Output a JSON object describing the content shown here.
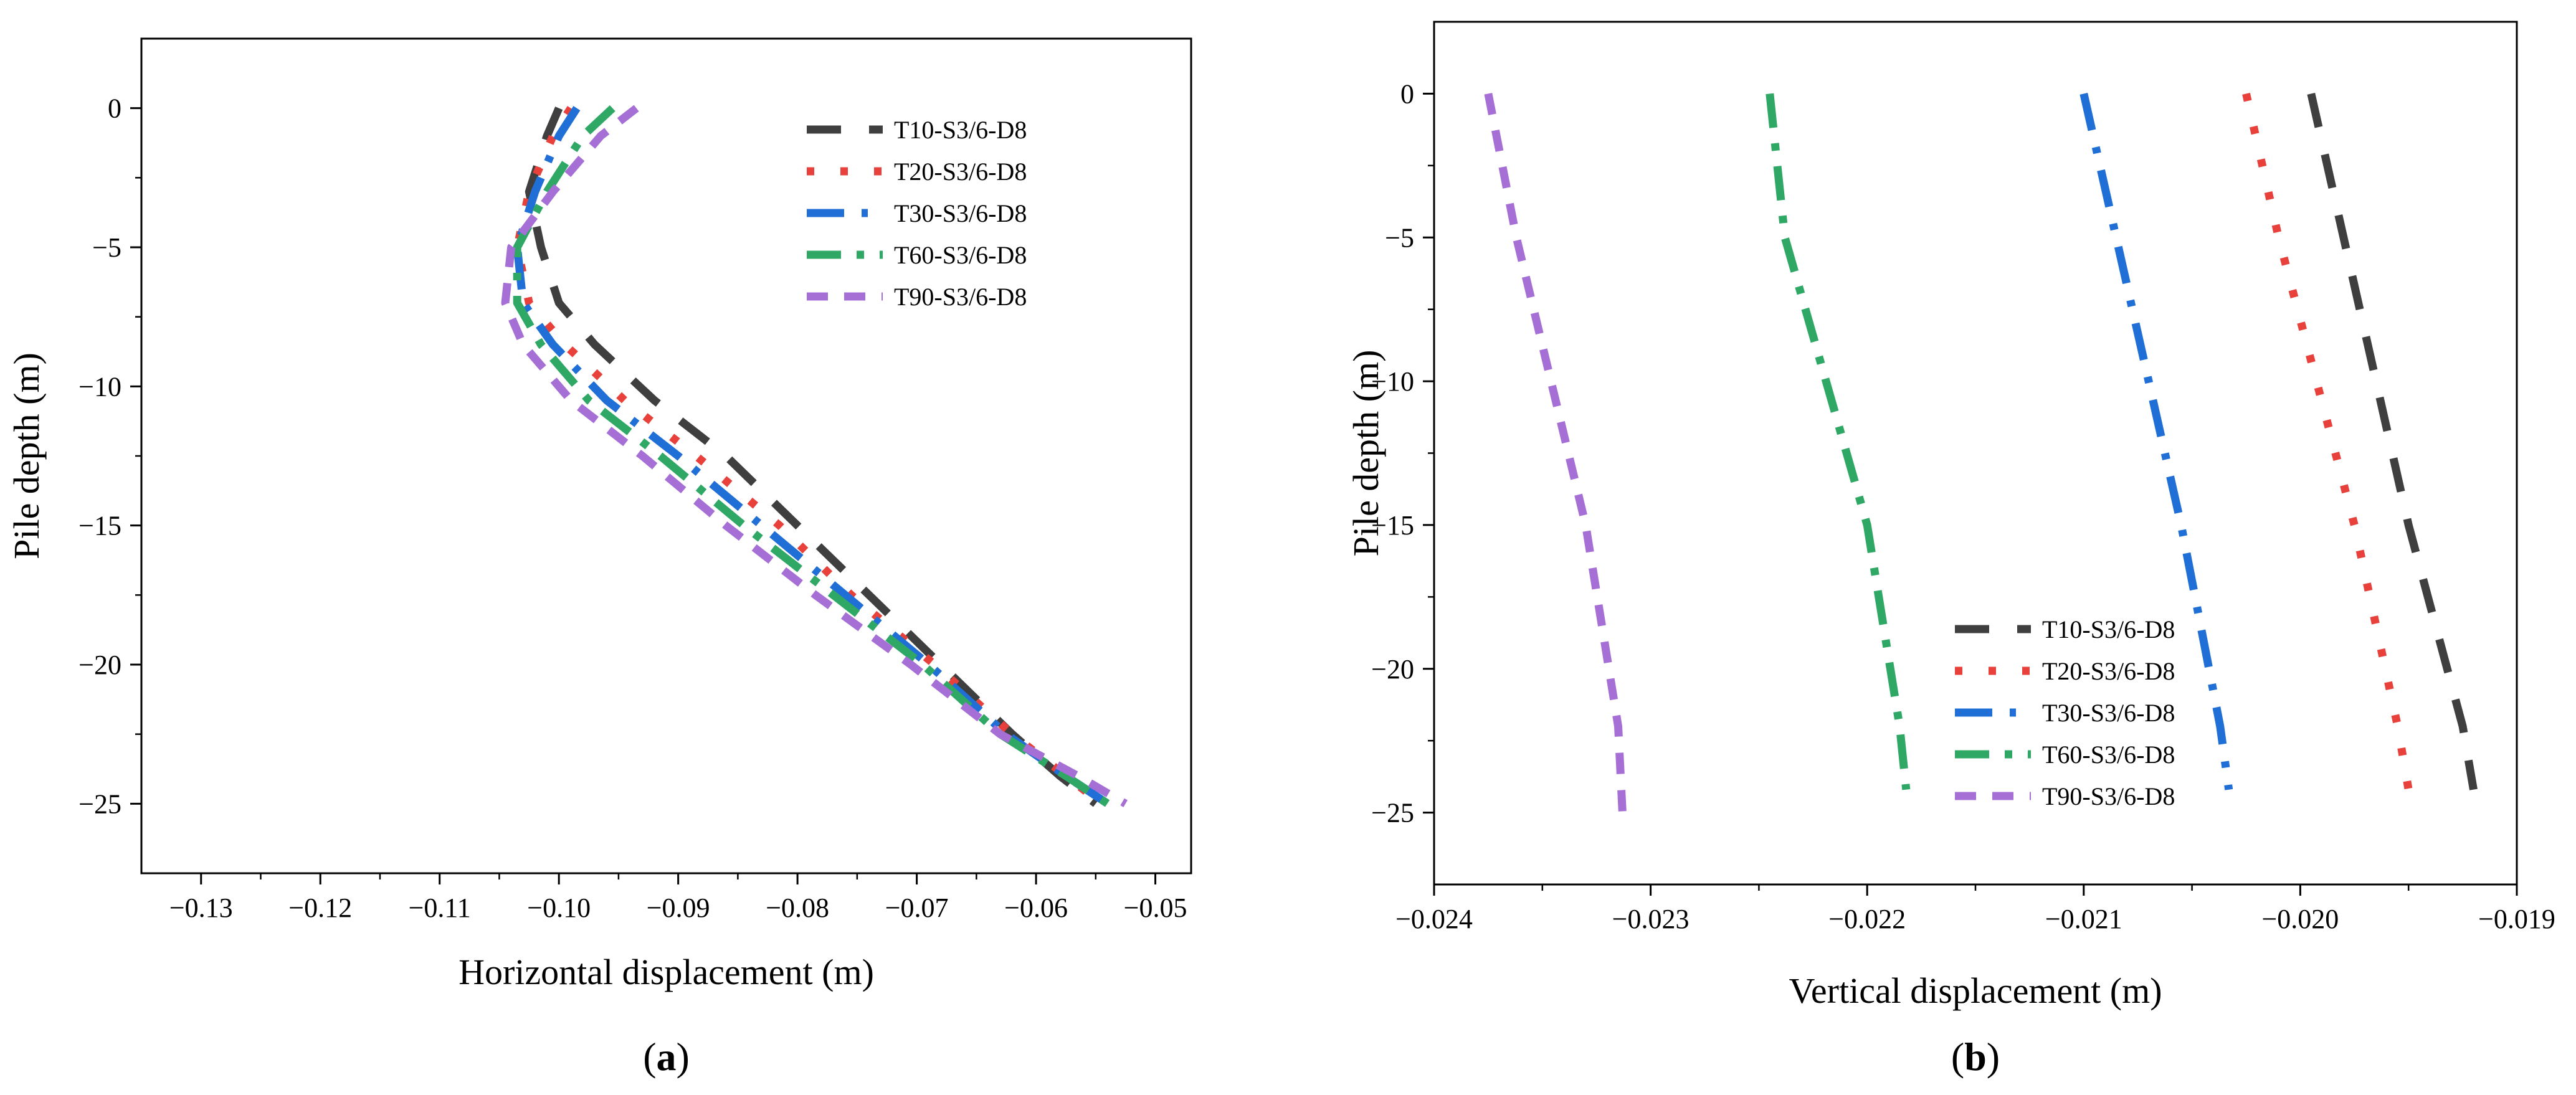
{
  "colors": {
    "T10": "#3f3f3f",
    "T20": "#e8413c",
    "T30": "#1f6fd6",
    "T60": "#2fa865",
    "T90": "#a56fd6"
  },
  "chart_data": [
    {
      "type": "line",
      "panel_label_open": "(",
      "panel_label_letter": "a",
      "panel_label_close": ")",
      "xlabel": "Horizontal displacement (m)",
      "ylabel": "Pile depth (m)",
      "xlim": [
        -0.135,
        -0.047
      ],
      "ylim": [
        -27.5,
        2.5
      ],
      "xticks": [
        -0.13,
        -0.12,
        -0.11,
        -0.1,
        -0.09,
        -0.08,
        -0.07,
        -0.06,
        -0.05
      ],
      "xtick_labels": [
        "−0.13",
        "−0.12",
        "−0.11",
        "−0.10",
        "−0.09",
        "−0.08",
        "−0.07",
        "−0.06",
        "−0.05"
      ],
      "yticks": [
        0,
        -5,
        -10,
        -15,
        -20,
        -25
      ],
      "ytick_labels": [
        "0",
        "−5",
        "−10",
        "−15",
        "−20",
        "−25"
      ],
      "legend_position": "top-right",
      "series": [
        {
          "name": "T10-S3/6-D8",
          "color_key": "T10",
          "dash": "long",
          "x": [
            -0.1,
            -0.101,
            -0.1025,
            -0.1015,
            -0.1,
            -0.097,
            -0.092,
            -0.086,
            -0.08,
            -0.074,
            -0.068,
            -0.062,
            -0.058,
            -0.055
          ],
          "y": [
            0,
            -1,
            -3,
            -5,
            -7,
            -8.5,
            -10.5,
            -12.5,
            -15,
            -17.5,
            -20,
            -22.5,
            -24,
            -25
          ]
        },
        {
          "name": "T20-S3/6-D8",
          "color_key": "T20",
          "dash": "dot",
          "x": [
            -0.099,
            -0.1005,
            -0.1025,
            -0.1035,
            -0.1025,
            -0.0995,
            -0.0945,
            -0.0885,
            -0.0815,
            -0.0755,
            -0.0685,
            -0.062,
            -0.0575,
            -0.0545
          ],
          "y": [
            0,
            -1,
            -3,
            -5,
            -7,
            -8.5,
            -10.5,
            -12.5,
            -15,
            -17.5,
            -20,
            -22.5,
            -24,
            -25
          ]
        },
        {
          "name": "T30-S3/6-D8",
          "color_key": "T30",
          "dash": "dashdot",
          "x": [
            -0.0985,
            -0.1,
            -0.102,
            -0.1035,
            -0.103,
            -0.1005,
            -0.096,
            -0.09,
            -0.083,
            -0.076,
            -0.069,
            -0.0625,
            -0.0575,
            -0.054
          ],
          "y": [
            0,
            -1,
            -3,
            -5,
            -7,
            -8.5,
            -10.5,
            -12.5,
            -15,
            -17.5,
            -20,
            -22.5,
            -24,
            -25
          ]
        },
        {
          "name": "T60-S3/6-D8",
          "color_key": "T60",
          "dash": "dashdotlong",
          "x": [
            -0.0955,
            -0.098,
            -0.101,
            -0.1035,
            -0.1035,
            -0.1015,
            -0.0975,
            -0.0915,
            -0.0845,
            -0.077,
            -0.0695,
            -0.063,
            -0.0575,
            -0.054
          ],
          "y": [
            0,
            -1,
            -3,
            -5,
            -7,
            -8.5,
            -10.5,
            -12.5,
            -15,
            -17.5,
            -20,
            -22.5,
            -24,
            -25
          ]
        },
        {
          "name": "T90-S3/6-D8",
          "color_key": "T90",
          "dash": "short",
          "x": [
            -0.0935,
            -0.0965,
            -0.1005,
            -0.104,
            -0.1045,
            -0.103,
            -0.099,
            -0.093,
            -0.086,
            -0.0785,
            -0.0705,
            -0.063,
            -0.0565,
            -0.0525
          ],
          "y": [
            0,
            -1,
            -3,
            -5,
            -7,
            -8.5,
            -10.5,
            -12.5,
            -15,
            -17.5,
            -20,
            -22.5,
            -24,
            -25
          ]
        }
      ]
    },
    {
      "type": "line",
      "panel_label_open": "(",
      "panel_label_letter": "b",
      "panel_label_close": ")",
      "xlabel": "Vertical displacement (m)",
      "ylabel": "Pile depth (m)",
      "xlim": [
        -0.024,
        -0.019
      ],
      "ylim": [
        -27.5,
        2.5
      ],
      "xticks": [
        -0.024,
        -0.023,
        -0.022,
        -0.021,
        -0.02,
        -0.019
      ],
      "xtick_labels": [
        "−0.024",
        "−0.023",
        "−0.022",
        "−0.021",
        "−0.020",
        "−0.019"
      ],
      "yticks": [
        0,
        -5,
        -10,
        -15,
        -20,
        -25
      ],
      "ytick_labels": [
        "0",
        "−5",
        "−10",
        "−15",
        "−20",
        "−25"
      ],
      "legend_position": "bottom-center",
      "series": [
        {
          "name": "T10-S3/6-D8",
          "color_key": "T10",
          "dash": "long",
          "x": [
            -0.01995,
            -0.0198,
            -0.0195,
            -0.01925,
            -0.0192
          ],
          "y": [
            0,
            -5,
            -15,
            -22,
            -24.2
          ]
        },
        {
          "name": "T20-S3/6-D8",
          "color_key": "T20",
          "dash": "dot",
          "x": [
            -0.02025,
            -0.0201,
            -0.01975,
            -0.01955,
            -0.0195
          ],
          "y": [
            0,
            -5,
            -15,
            -22,
            -24.2
          ]
        },
        {
          "name": "T30-S3/6-D8",
          "color_key": "T30",
          "dash": "dashdot",
          "x": [
            -0.021,
            -0.02085,
            -0.02055,
            -0.02037,
            -0.02033
          ],
          "y": [
            0,
            -5,
            -15,
            -22,
            -24.2
          ]
        },
        {
          "name": "T60-S3/6-D8",
          "color_key": "T60",
          "dash": "dashdotlong",
          "x": [
            -0.02245,
            -0.02238,
            -0.022,
            -0.02185,
            -0.02182
          ],
          "y": [
            0,
            -5,
            -15,
            -22,
            -24.2
          ]
        },
        {
          "name": "T90-S3/6-D8",
          "color_key": "T90",
          "dash": "short",
          "x": [
            -0.02375,
            -0.02362,
            -0.0233,
            -0.02315,
            -0.02313
          ],
          "y": [
            0,
            -5,
            -15,
            -22,
            -25
          ]
        }
      ]
    }
  ]
}
